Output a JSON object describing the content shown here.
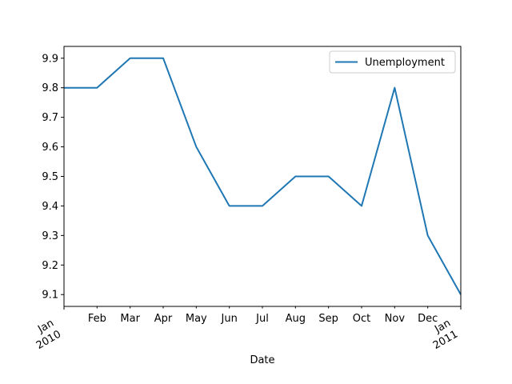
{
  "chart_data": {
    "type": "line",
    "title": "",
    "xlabel": "Date",
    "ylabel": "",
    "x": [
      "2010-01",
      "2010-02",
      "2010-03",
      "2010-04",
      "2010-05",
      "2010-06",
      "2010-07",
      "2010-08",
      "2010-09",
      "2010-10",
      "2010-11",
      "2010-12",
      "2011-01"
    ],
    "x_tick_labels": [
      {
        "line1": "Jan",
        "line2": "2010"
      },
      {
        "line1": "Feb",
        "line2": ""
      },
      {
        "line1": "Mar",
        "line2": ""
      },
      {
        "line1": "Apr",
        "line2": ""
      },
      {
        "line1": "May",
        "line2": ""
      },
      {
        "line1": "Jun",
        "line2": ""
      },
      {
        "line1": "Jul",
        "line2": ""
      },
      {
        "line1": "Aug",
        "line2": ""
      },
      {
        "line1": "Sep",
        "line2": ""
      },
      {
        "line1": "Oct",
        "line2": ""
      },
      {
        "line1": "Nov",
        "line2": ""
      },
      {
        "line1": "Dec",
        "line2": ""
      },
      {
        "line1": "Jan",
        "line2": "2011"
      }
    ],
    "series": [
      {
        "name": "Unemployment",
        "color": "#1f77b4",
        "values": [
          9.8,
          9.8,
          9.9,
          9.9,
          9.6,
          9.4,
          9.4,
          9.5,
          9.5,
          9.4,
          9.8,
          9.3,
          9.1
        ]
      }
    ],
    "ylim": [
      9.06,
      9.94
    ],
    "y_ticks": [
      "9.1",
      "9.2",
      "9.3",
      "9.4",
      "9.5",
      "9.6",
      "9.7",
      "9.8",
      "9.9"
    ],
    "grid": false,
    "legend_position": "top-right"
  }
}
